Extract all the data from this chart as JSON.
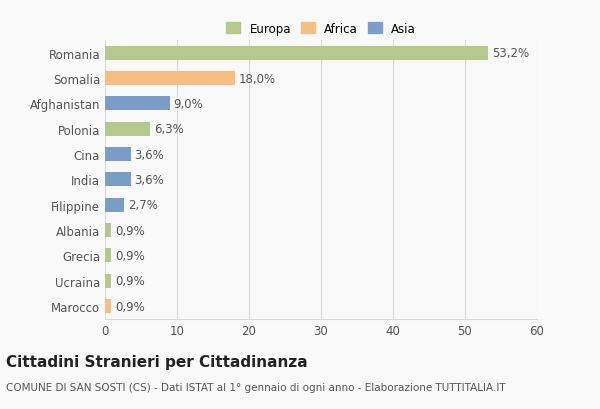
{
  "categories": [
    "Romania",
    "Somalia",
    "Afghanistan",
    "Polonia",
    "Cina",
    "India",
    "Filippine",
    "Albania",
    "Grecia",
    "Ucraina",
    "Marocco"
  ],
  "values": [
    53.2,
    18.0,
    9.0,
    6.3,
    3.6,
    3.6,
    2.7,
    0.9,
    0.9,
    0.9,
    0.9
  ],
  "labels": [
    "53,2%",
    "18,0%",
    "9,0%",
    "6,3%",
    "3,6%",
    "3,6%",
    "2,7%",
    "0,9%",
    "0,9%",
    "0,9%",
    "0,9%"
  ],
  "colors": [
    "#b5c98e",
    "#f5bf84",
    "#7b9ec9",
    "#b5c98e",
    "#7b9ec9",
    "#7b9ec9",
    "#7b9ec9",
    "#b5c98e",
    "#b5c98e",
    "#b5c98e",
    "#f5bf84"
  ],
  "legend_labels": [
    "Europa",
    "Africa",
    "Asia"
  ],
  "legend_colors": [
    "#b5c98e",
    "#f5bf84",
    "#7b9ec9"
  ],
  "title": "Cittadini Stranieri per Cittadinanza",
  "subtitle": "COMUNE DI SAN SOSTI (CS) - Dati ISTAT al 1° gennaio di ogni anno - Elaborazione TUTTITALIA.IT",
  "xlim": [
    0,
    60
  ],
  "xticks": [
    0,
    10,
    20,
    30,
    40,
    50,
    60
  ],
  "bar_height": 0.55,
  "background_color": "#f9f9f9",
  "grid_color": "#d8d8d8",
  "title_fontsize": 11,
  "subtitle_fontsize": 7.5,
  "tick_fontsize": 8.5,
  "label_fontsize": 8.5
}
